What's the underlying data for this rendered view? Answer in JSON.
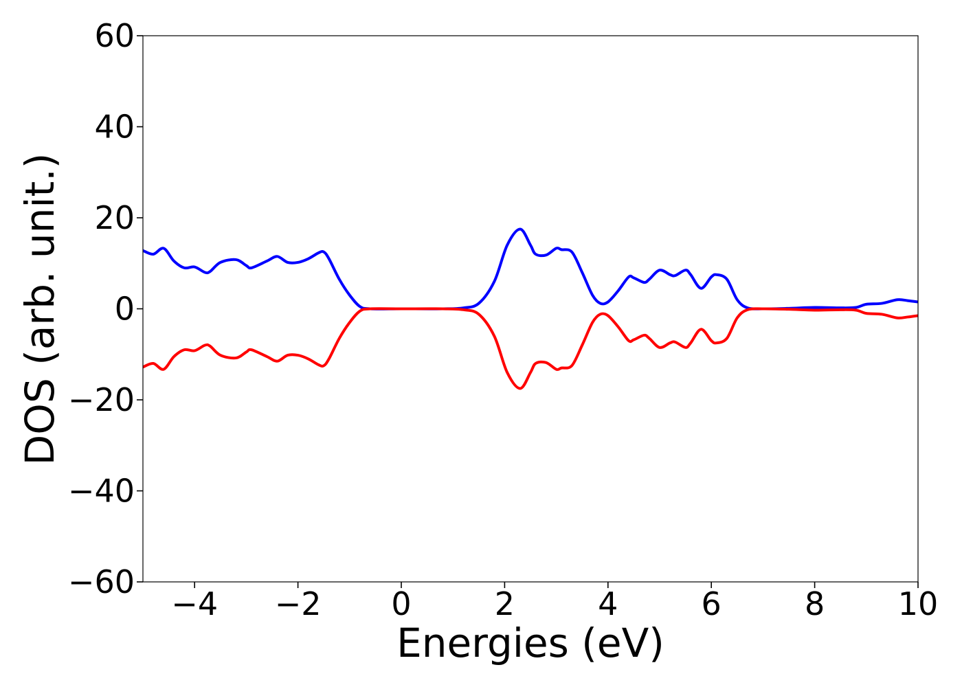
{
  "chart_data": {
    "type": "line",
    "title": "",
    "xlabel": "Energies (eV)",
    "ylabel": "DOS (arb. unit.)",
    "xlim": [
      -5,
      10
    ],
    "ylim": [
      -60,
      60
    ],
    "xticks": [
      -4,
      -2,
      0,
      2,
      4,
      6,
      8,
      10
    ],
    "xtick_labels": [
      "−4",
      "−2",
      "0",
      "2",
      "4",
      "6",
      "8",
      "10"
    ],
    "yticks": [
      60,
      40,
      20,
      0,
      -20,
      -40,
      -60
    ],
    "ytick_labels": [
      "60",
      "40",
      "20",
      "0",
      "−20",
      "−40",
      "−60"
    ],
    "grid": false,
    "legend": "none",
    "series": [
      {
        "color": "#0000ff",
        "x": [
          -5.0,
          -4.8,
          -4.6,
          -4.4,
          -4.2,
          -4.0,
          -3.8,
          -3.7,
          -3.5,
          -3.2,
          -3.0,
          -2.9,
          -2.6,
          -2.4,
          -2.2,
          -2.0,
          -1.8,
          -1.6,
          -1.5,
          -1.4,
          -1.2,
          -1.0,
          -0.8,
          -0.6,
          0.0,
          0.8,
          1.2,
          1.5,
          1.8,
          2.05,
          2.3,
          2.5,
          2.6,
          2.8,
          3.0,
          3.1,
          3.3,
          3.5,
          3.7,
          3.85,
          4.0,
          4.2,
          4.4,
          4.5,
          4.7,
          4.8,
          5.0,
          5.2,
          5.3,
          5.5,
          5.6,
          5.8,
          6.0,
          6.1,
          6.3,
          6.5,
          6.7,
          7.0,
          7.5,
          8.0,
          8.5,
          8.8,
          9.0,
          9.3,
          9.6,
          9.8,
          10.0
        ],
        "y": [
          12.8,
          12.0,
          13.3,
          10.5,
          9.0,
          9.2,
          8.0,
          8.2,
          10.2,
          10.8,
          9.5,
          9.0,
          10.5,
          11.5,
          10.2,
          10.2,
          11.0,
          12.3,
          12.5,
          11.0,
          6.5,
          3.0,
          0.5,
          0.0,
          0.0,
          0.0,
          0.2,
          1.2,
          6.0,
          14.0,
          17.5,
          14.0,
          12.0,
          11.8,
          13.3,
          13.0,
          12.5,
          8.0,
          3.0,
          1.2,
          1.5,
          4.0,
          7.0,
          6.8,
          5.8,
          6.5,
          8.5,
          7.5,
          7.3,
          8.5,
          7.5,
          4.5,
          7.0,
          7.5,
          6.5,
          2.0,
          0.2,
          0.0,
          0.1,
          0.3,
          0.2,
          0.3,
          1.0,
          1.2,
          2.0,
          1.8,
          1.5
        ]
      },
      {
        "color": "#ff0000",
        "x": [
          -5.0,
          -4.8,
          -4.6,
          -4.4,
          -4.2,
          -4.0,
          -3.8,
          -3.7,
          -3.5,
          -3.2,
          -3.0,
          -2.9,
          -2.6,
          -2.4,
          -2.2,
          -2.0,
          -1.8,
          -1.6,
          -1.5,
          -1.4,
          -1.2,
          -1.0,
          -0.8,
          -0.6,
          0.0,
          0.8,
          1.2,
          1.5,
          1.8,
          2.05,
          2.3,
          2.5,
          2.6,
          2.8,
          3.0,
          3.1,
          3.3,
          3.5,
          3.7,
          3.85,
          4.0,
          4.2,
          4.4,
          4.5,
          4.7,
          4.8,
          5.0,
          5.2,
          5.3,
          5.5,
          5.6,
          5.8,
          6.0,
          6.1,
          6.3,
          6.5,
          6.7,
          7.0,
          7.5,
          8.0,
          8.5,
          8.8,
          9.0,
          9.3,
          9.6,
          9.8,
          10.0
        ],
        "y": [
          -12.8,
          -12.0,
          -13.3,
          -10.5,
          -9.0,
          -9.2,
          -8.0,
          -8.2,
          -10.2,
          -10.8,
          -9.5,
          -9.0,
          -10.5,
          -11.5,
          -10.2,
          -10.2,
          -11.0,
          -12.3,
          -12.5,
          -11.0,
          -6.5,
          -3.0,
          -0.5,
          0.0,
          0.0,
          0.0,
          -0.2,
          -1.2,
          -6.0,
          -14.0,
          -17.5,
          -14.0,
          -12.0,
          -11.8,
          -13.3,
          -13.0,
          -12.5,
          -8.0,
          -3.0,
          -1.2,
          -1.5,
          -4.0,
          -7.0,
          -6.8,
          -5.8,
          -6.5,
          -8.5,
          -7.5,
          -7.3,
          -8.5,
          -7.5,
          -4.5,
          -7.0,
          -7.5,
          -6.5,
          -2.0,
          -0.2,
          0.0,
          -0.1,
          -0.3,
          -0.2,
          -0.3,
          -1.0,
          -1.2,
          -2.0,
          -1.8,
          -1.5
        ]
      }
    ]
  }
}
